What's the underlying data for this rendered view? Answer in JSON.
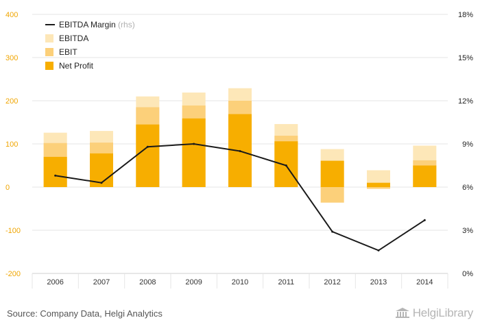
{
  "chart_data": {
    "type": "bar",
    "categories": [
      "2006",
      "2007",
      "2008",
      "2009",
      "2010",
      "2011",
      "2012",
      "2013",
      "2014"
    ],
    "series": [
      {
        "name": "EBITDA",
        "kind": "bar",
        "axis": "left",
        "color": "#fde7b8",
        "values": [
          126,
          130,
          210,
          219,
          229,
          146,
          88,
          39,
          96
        ]
      },
      {
        "name": "EBIT",
        "kind": "bar",
        "axis": "left",
        "color": "#fcd07a",
        "values": [
          102,
          103,
          185,
          189,
          200,
          119,
          -36,
          -4,
          62
        ]
      },
      {
        "name": "Net Profit",
        "kind": "bar",
        "axis": "left",
        "color": "#f7ae00",
        "values": [
          70,
          78,
          145,
          159,
          169,
          106,
          61,
          10,
          50
        ]
      },
      {
        "name": "EBITDA Margin",
        "kind": "line",
        "axis": "right",
        "color": "#1a1a1a",
        "values": [
          6.8,
          6.3,
          8.8,
          9.0,
          8.5,
          7.5,
          2.9,
          1.6,
          3.7
        ]
      }
    ],
    "legend_suffix": "(rhs)",
    "ylim": [
      -200,
      400
    ],
    "yticks": [
      "400",
      "300",
      "200",
      "100",
      "0",
      "-100",
      "-200"
    ],
    "y2lim": [
      0,
      18
    ],
    "y2ticks": [
      "18%",
      "15%",
      "12%",
      "9%",
      "6%",
      "3%",
      "0%"
    ],
    "legend_position": "top-left",
    "grid": true
  },
  "footer": {
    "source": "Source: Company Data, Helgi Analytics",
    "logo": "HelgiLibrary"
  },
  "colors": {
    "left_axis_labels": "#f0a500",
    "right_axis_labels": "#222222",
    "gridline": "#e6e6e6"
  }
}
